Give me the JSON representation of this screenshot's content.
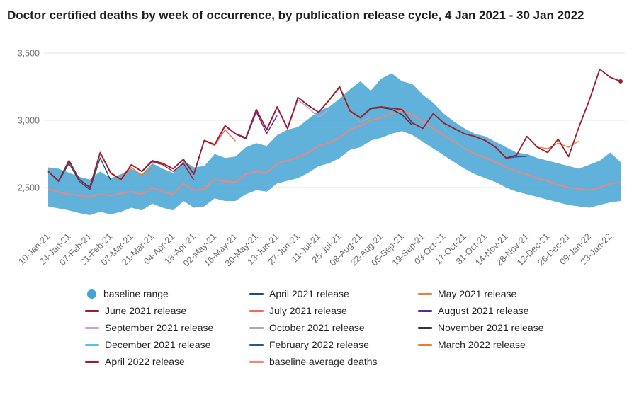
{
  "title": "Doctor certified deaths by week of occurrence, by publication release cycle, 4 Jan 2021 - 30 Jan 2022",
  "chart_data": {
    "type": "line",
    "title": "Doctor certified deaths by week of occurrence, by publication release cycle, 4 Jan 2021 - 30 Jan 2022",
    "ylabel": "",
    "xlabel": "",
    "ylim": [
      2250,
      3550
    ],
    "grid": "horizontal",
    "grid_color": "#e3e3e3",
    "legend_position": "bottom",
    "y_tick_values": [
      3500,
      3000,
      2500
    ],
    "y_tick_labels": [
      "3,500",
      "3,000",
      "2,500"
    ],
    "x_tick_labels": [
      "10-Jan-21",
      "24-Jan-21",
      "07-Feb-21",
      "21-Feb-21",
      "07-Mar-21",
      "21-Mar-21",
      "04-Apr-21",
      "18-Apr-21",
      "02-May-21",
      "16-May-21",
      "30-May-21",
      "13-Jun-21",
      "27-Jun-21",
      "11-Jul-21",
      "25-Jul-21",
      "08-Aug-21",
      "22-Aug-21",
      "05-Sep-21",
      "19-Sep-21",
      "03-Oct-21",
      "17-Oct-21",
      "31-Oct-21",
      "14-Nov-21",
      "28-Nov-21",
      "12-Dec-21",
      "26-Dec-21",
      "09-Jan-22",
      "23-Jan-22"
    ],
    "weeks": [
      "10-Jan-21",
      "17-Jan-21",
      "24-Jan-21",
      "31-Jan-21",
      "07-Feb-21",
      "14-Feb-21",
      "21-Feb-21",
      "28-Feb-21",
      "07-Mar-21",
      "14-Mar-21",
      "21-Mar-21",
      "28-Mar-21",
      "04-Apr-21",
      "11-Apr-21",
      "18-Apr-21",
      "25-Apr-21",
      "02-May-21",
      "09-May-21",
      "16-May-21",
      "23-May-21",
      "30-May-21",
      "06-Jun-21",
      "13-Jun-21",
      "20-Jun-21",
      "27-Jun-21",
      "04-Jul-21",
      "11-Jul-21",
      "18-Jul-21",
      "25-Jul-21",
      "01-Aug-21",
      "08-Aug-21",
      "15-Aug-21",
      "22-Aug-21",
      "29-Aug-21",
      "05-Sep-21",
      "12-Sep-21",
      "19-Sep-21",
      "26-Sep-21",
      "03-Oct-21",
      "10-Oct-21",
      "17-Oct-21",
      "24-Oct-21",
      "31-Oct-21",
      "07-Nov-21",
      "14-Nov-21",
      "21-Nov-21",
      "28-Nov-21",
      "05-Dec-21",
      "12-Dec-21",
      "19-Dec-21",
      "26-Dec-21",
      "02-Jan-22",
      "09-Jan-22",
      "16-Jan-22",
      "23-Jan-22",
      "30-Jan-22"
    ],
    "band": {
      "name": "baseline range",
      "color": "#4aa7d5",
      "upper": [
        2650,
        2640,
        2610,
        2580,
        2560,
        2620,
        2570,
        2600,
        2640,
        2600,
        2680,
        2640,
        2610,
        2700,
        2650,
        2660,
        2750,
        2720,
        2730,
        2800,
        2830,
        2810,
        2890,
        2930,
        2950,
        3010,
        3070,
        3100,
        3160,
        3230,
        3290,
        3220,
        3310,
        3350,
        3290,
        3270,
        3190,
        3130,
        3050,
        2990,
        2940,
        2900,
        2880,
        2840,
        2800,
        2760,
        2750,
        2720,
        2700,
        2680,
        2660,
        2640,
        2670,
        2700,
        2760,
        2690
      ],
      "lower": [
        2360,
        2345,
        2330,
        2310,
        2295,
        2320,
        2300,
        2320,
        2350,
        2330,
        2380,
        2350,
        2330,
        2400,
        2350,
        2360,
        2420,
        2400,
        2400,
        2450,
        2480,
        2470,
        2530,
        2550,
        2570,
        2610,
        2660,
        2680,
        2720,
        2780,
        2800,
        2850,
        2870,
        2900,
        2920,
        2890,
        2840,
        2790,
        2740,
        2690,
        2640,
        2600,
        2570,
        2540,
        2500,
        2470,
        2450,
        2430,
        2410,
        2390,
        2370,
        2360,
        2350,
        2370,
        2390,
        2400
      ]
    },
    "baseline_average": {
      "name": "baseline average deaths",
      "color": "#f8837a",
      "values": [
        2490,
        2465,
        2450,
        2440,
        2430,
        2450,
        2440,
        2455,
        2470,
        2450,
        2500,
        2470,
        2450,
        2530,
        2480,
        2490,
        2560,
        2545,
        2540,
        2600,
        2620,
        2610,
        2680,
        2700,
        2725,
        2760,
        2810,
        2830,
        2870,
        2930,
        2960,
        3000,
        3020,
        3050,
        3070,
        3040,
        2990,
        2940,
        2890,
        2840,
        2790,
        2750,
        2720,
        2690,
        2650,
        2620,
        2600,
        2570,
        2550,
        2520,
        2500,
        2490,
        2480,
        2500,
        2530,
        2540
      ]
    },
    "series": [
      {
        "name": "April 2021 release",
        "color": "#1f4e79",
        "stroke_width": 1.4,
        "values": [
          2620,
          2545,
          2680,
          2545,
          2485,
          2720,
          2555
        ]
      },
      {
        "name": "May 2021 release",
        "color": "#ed7d31",
        "stroke_width": 1.4,
        "values": [
          2620,
          2550,
          2700,
          2560,
          2500,
          2755,
          2605,
          2555,
          2650,
          2590,
          2645
        ]
      },
      {
        "name": "June 2021 release",
        "color": "#9e1b32",
        "stroke_width": 1.4,
        "values": [
          2620,
          2550,
          2700,
          2560,
          2500,
          2760,
          2610,
          2560,
          2670,
          2618,
          2692,
          2670,
          2620,
          2680,
          2555
        ]
      },
      {
        "name": "July 2021 release",
        "color": "#fb655b",
        "stroke_width": 1.4,
        "values": [
          2620,
          2550,
          2700,
          2560,
          2500,
          2760,
          2610,
          2560,
          2670,
          2620,
          2700,
          2680,
          2640,
          2710,
          2600,
          2848,
          2812,
          2930,
          2845
        ]
      },
      {
        "name": "August 2021 release",
        "color": "#5c2d91",
        "stroke_width": 1.4,
        "values": [
          2620,
          2550,
          2700,
          2560,
          2500,
          2760,
          2610,
          2560,
          2670,
          2620,
          2700,
          2680,
          2640,
          2710,
          2600,
          2850,
          2820,
          2958,
          2898,
          2862,
          3062,
          2902,
          3035
        ]
      },
      {
        "name": "September 2021 release",
        "color": "#c5a0d5",
        "stroke_width": 1.4,
        "values": [
          2620,
          2550,
          2700,
          2560,
          2500,
          2760,
          2610,
          2560,
          2670,
          2620,
          2700,
          2680,
          2640,
          2710,
          2600,
          2850,
          2820,
          2960,
          2900,
          2870,
          3078,
          2928,
          3092,
          2932,
          3152,
          3092,
          3022,
          3085
        ]
      },
      {
        "name": "October 2021 release",
        "color": "#ababab",
        "stroke_width": 1.4,
        "values": [
          2620,
          2550,
          2700,
          2560,
          2500,
          2760,
          2610,
          2560,
          2670,
          2620,
          2700,
          2680,
          2640,
          2710,
          2600,
          2850,
          2820,
          2960,
          2900,
          2870,
          3080,
          2930,
          3098,
          2938,
          3168,
          3108,
          3058,
          3148,
          3242,
          3058,
          2985,
          3025
        ]
      },
      {
        "name": "November 2021 release",
        "color": "#343347",
        "stroke_width": 1.5,
        "values": [
          2620,
          2550,
          2700,
          2560,
          2500,
          2760,
          2610,
          2560,
          2670,
          2620,
          2700,
          2680,
          2640,
          2710,
          2600,
          2850,
          2820,
          2960,
          2900,
          2870,
          3080,
          2930,
          3100,
          2940,
          3170,
          3110,
          3060,
          3150,
          3248,
          3068,
          3018,
          3086,
          3095,
          3082,
          3042,
          2962
        ]
      },
      {
        "name": "December 2021 release",
        "color": "#56c2e6",
        "stroke_width": 1.4,
        "values": [
          2620,
          2550,
          2700,
          2560,
          2500,
          2760,
          2610,
          2560,
          2670,
          2620,
          2700,
          2680,
          2640,
          2710,
          2600,
          2850,
          2820,
          2960,
          2900,
          2870,
          3080,
          2930,
          3100,
          2940,
          3170,
          3110,
          3060,
          3150,
          3250,
          3070,
          3020,
          3090,
          3100,
          3088,
          3076,
          2976,
          2936,
          3044,
          2948,
          2862,
          2782
        ]
      },
      {
        "name": "February 2022 release",
        "color": "#27598c",
        "stroke_width": 1.4,
        "values": [
          2620,
          2550,
          2700,
          2560,
          2500,
          2760,
          2610,
          2560,
          2670,
          2620,
          2700,
          2680,
          2640,
          2710,
          2600,
          2850,
          2820,
          2960,
          2900,
          2870,
          3080,
          2930,
          3100,
          2940,
          3170,
          3110,
          3060,
          3150,
          3250,
          3070,
          3020,
          3090,
          3100,
          3090,
          3080,
          2980,
          2940,
          3050,
          2980,
          2940,
          2900,
          2880,
          2850,
          2798,
          2718,
          2728,
          2732
        ]
      },
      {
        "name": "March 2022 release",
        "color": "#ed7d31",
        "stroke_width": 1.4,
        "values": [
          2620,
          2550,
          2700,
          2560,
          2500,
          2760,
          2610,
          2560,
          2670,
          2620,
          2700,
          2680,
          2640,
          2710,
          2600,
          2850,
          2820,
          2960,
          2900,
          2870,
          3080,
          2930,
          3100,
          2940,
          3170,
          3110,
          3060,
          3150,
          3250,
          3070,
          3020,
          3090,
          3100,
          3090,
          3080,
          2980,
          2940,
          3050,
          2980,
          2940,
          2900,
          2880,
          2850,
          2800,
          2720,
          2740,
          2880,
          2800,
          2790,
          2830,
          2800,
          2845
        ]
      },
      {
        "name": "April 2022 release",
        "color": "#9e1b32",
        "stroke_width": 1.8,
        "end_dot": true,
        "values": [
          2620,
          2550,
          2700,
          2560,
          2500,
          2760,
          2610,
          2560,
          2670,
          2620,
          2700,
          2680,
          2640,
          2710,
          2600,
          2850,
          2820,
          2960,
          2900,
          2870,
          3080,
          2930,
          3100,
          2940,
          3170,
          3110,
          3060,
          3150,
          3250,
          3070,
          3020,
          3090,
          3100,
          3090,
          3080,
          2980,
          2940,
          3050,
          2980,
          2940,
          2900,
          2880,
          2850,
          2800,
          2720,
          2740,
          2880,
          2800,
          2760,
          2860,
          2730,
          2950,
          3150,
          3380,
          3320,
          3290
        ]
      }
    ]
  },
  "legend": {
    "items": [
      {
        "label": "baseline range",
        "marker": "circle",
        "color": "#41a3d3"
      },
      {
        "label": "April 2021 release",
        "marker": "line",
        "color": "#1f4e79"
      },
      {
        "label": "May 2021 release",
        "marker": "line",
        "color": "#ed7d31"
      },
      {
        "label": "June 2021 release",
        "marker": "line",
        "color": "#9e1b32"
      },
      {
        "label": "July 2021 release",
        "marker": "line",
        "color": "#fb655b"
      },
      {
        "label": "August 2021 release",
        "marker": "line",
        "color": "#5c2d91"
      },
      {
        "label": "September 2021 release",
        "marker": "line",
        "color": "#c5a0d5"
      },
      {
        "label": "October 2021 release",
        "marker": "line",
        "color": "#ababab"
      },
      {
        "label": "November 2021 release",
        "marker": "line",
        "color": "#343347"
      },
      {
        "label": "December 2021 release",
        "marker": "line",
        "color": "#56c2e6"
      },
      {
        "label": "February 2022 release",
        "marker": "line",
        "color": "#27598c"
      },
      {
        "label": "March 2022 release",
        "marker": "line",
        "color": "#ed7d31"
      },
      {
        "label": "April 2022 release",
        "marker": "line",
        "color": "#9e1b32"
      },
      {
        "label": "baseline average deaths",
        "marker": "line",
        "color": "#f8837a"
      }
    ]
  }
}
